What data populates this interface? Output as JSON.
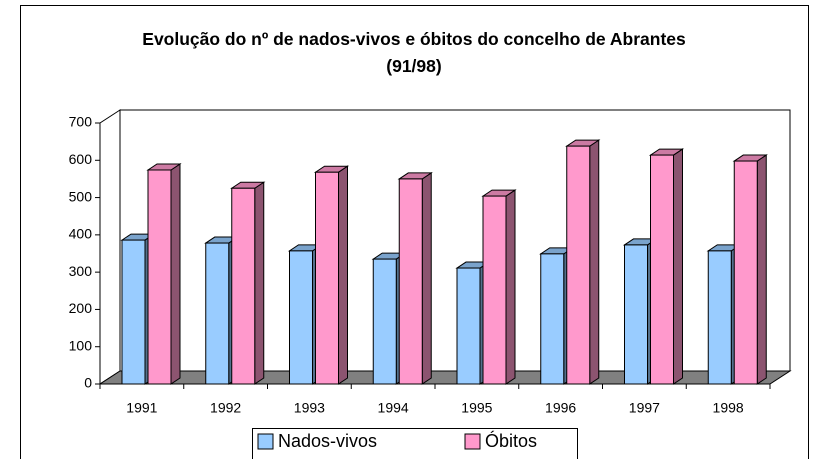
{
  "chart_data": {
    "type": "bar3d",
    "title": "Evolução do nº de nados-vivos e óbitos do concelho de Abrantes (91/98)",
    "categories": [
      "1991",
      "1992",
      "1993",
      "1994",
      "1995",
      "1996",
      "1997",
      "1998"
    ],
    "series": [
      {
        "name": "Nados-vivos",
        "color": "#99ccff",
        "values": [
          386,
          378,
          357,
          335,
          311,
          349,
          373,
          357
        ]
      },
      {
        "name": "Óbitos",
        "color": "#ff99cc",
        "values": [
          574,
          525,
          568,
          550,
          504,
          638,
          614,
          598
        ]
      }
    ],
    "ylim": [
      0,
      700
    ],
    "yticks": [
      0,
      100,
      200,
      300,
      400,
      500,
      600,
      700
    ],
    "grid": false,
    "legend": "bottom"
  }
}
